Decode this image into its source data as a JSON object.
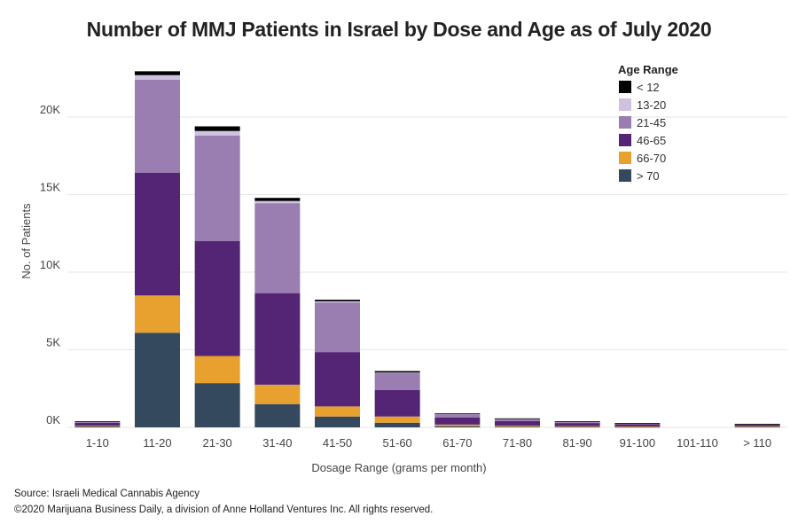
{
  "chart_data": {
    "type": "bar",
    "stacked": true,
    "title": "Number of MMJ Patients in Israel by Dose and Age as of July 2020",
    "xlabel": "Dosage Range (grams per month)",
    "ylabel": "No. of Patients",
    "ylim": [
      0,
      24000
    ],
    "yticks": [
      0,
      5000,
      10000,
      15000,
      20000
    ],
    "ytick_labels": [
      "0K",
      "5K",
      "10K",
      "15K",
      "20K"
    ],
    "grid": true,
    "legend": {
      "title": "Age Range",
      "position": "top-right"
    },
    "categories": [
      "1-10",
      "11-20",
      "21-30",
      "31-40",
      "41-50",
      "51-60",
      "61-70",
      "71-80",
      "81-90",
      "91-100",
      "101-110",
      "> 110"
    ],
    "series": [
      {
        "name": "> 70",
        "color": "#34495e",
        "values": [
          60,
          6100,
          2850,
          1500,
          700,
          300,
          80,
          50,
          40,
          30,
          0,
          40
        ]
      },
      {
        "name": "66-70",
        "color": "#e8a02f",
        "values": [
          40,
          2400,
          1750,
          1250,
          650,
          400,
          100,
          60,
          40,
          30,
          0,
          40
        ]
      },
      {
        "name": "46-65",
        "color": "#542575",
        "values": [
          200,
          7900,
          7400,
          5900,
          3500,
          1700,
          450,
          300,
          200,
          150,
          0,
          100
        ]
      },
      {
        "name": "21-45",
        "color": "#9a7db1",
        "values": [
          80,
          6000,
          6800,
          5800,
          3200,
          1100,
          250,
          160,
          100,
          60,
          0,
          40
        ]
      },
      {
        "name": "13-20",
        "color": "#cfc2de",
        "values": [
          10,
          300,
          300,
          140,
          80,
          30,
          10,
          5,
          5,
          5,
          0,
          5
        ]
      },
      {
        "name": "< 12",
        "color": "#000000",
        "values": [
          10,
          250,
          300,
          200,
          100,
          100,
          10,
          5,
          5,
          5,
          0,
          5
        ]
      }
    ]
  },
  "footer": {
    "source": "Source: Israeli Medical Cannabis Agency",
    "copyright": "©2020 Marijuana Business Daily, a division of Anne Holland Ventures Inc. All rights reserved."
  }
}
